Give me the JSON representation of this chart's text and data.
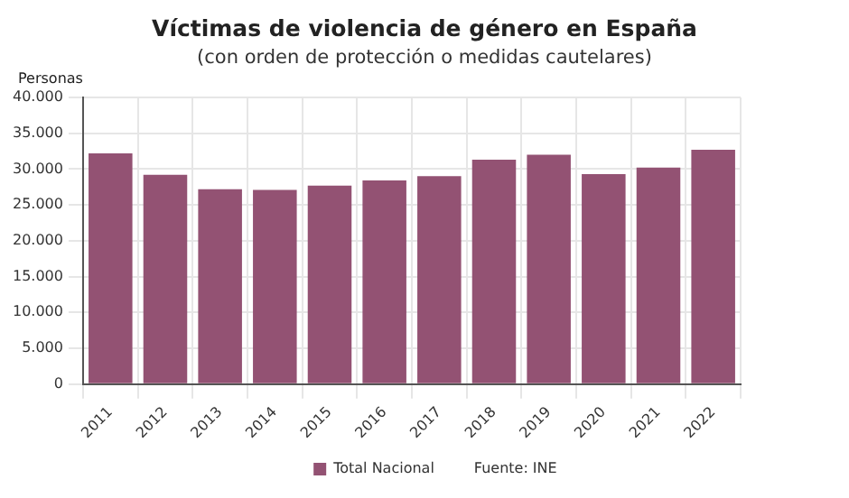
{
  "chart_data": {
    "type": "bar",
    "title": "Víctimas de violencia de género en España",
    "subtitle": "(con orden de protección o medidas cautelares)",
    "ylabel": "Personas",
    "categories": [
      "2011",
      "2012",
      "2013",
      "2014",
      "2015",
      "2016",
      "2017",
      "2018",
      "2019",
      "2020",
      "2021",
      "2022"
    ],
    "series": [
      {
        "name": "Total Nacional",
        "color": "#935273",
        "values": [
          32200,
          29200,
          27200,
          27100,
          27700,
          28400,
          29000,
          31300,
          32000,
          29300,
          30200,
          32700
        ]
      }
    ],
    "ylim": [
      0,
      40000
    ],
    "yticks": [
      0,
      {
        "value": 5000,
        "label": "5.000"
      },
      {
        "value": 10000,
        "label": "10.000"
      },
      {
        "value": 15000,
        "label": "15.000"
      },
      {
        "value": 20000,
        "label": "20.000"
      },
      {
        "value": 25000,
        "label": "25.000"
      },
      {
        "value": 30000,
        "label": "30.000"
      },
      {
        "value": 35000,
        "label": "35.000"
      },
      {
        "value": 40000,
        "label": "40.000"
      }
    ],
    "grid": true,
    "legend": "bottom",
    "annotations": [
      "Fuente: INE"
    ]
  }
}
